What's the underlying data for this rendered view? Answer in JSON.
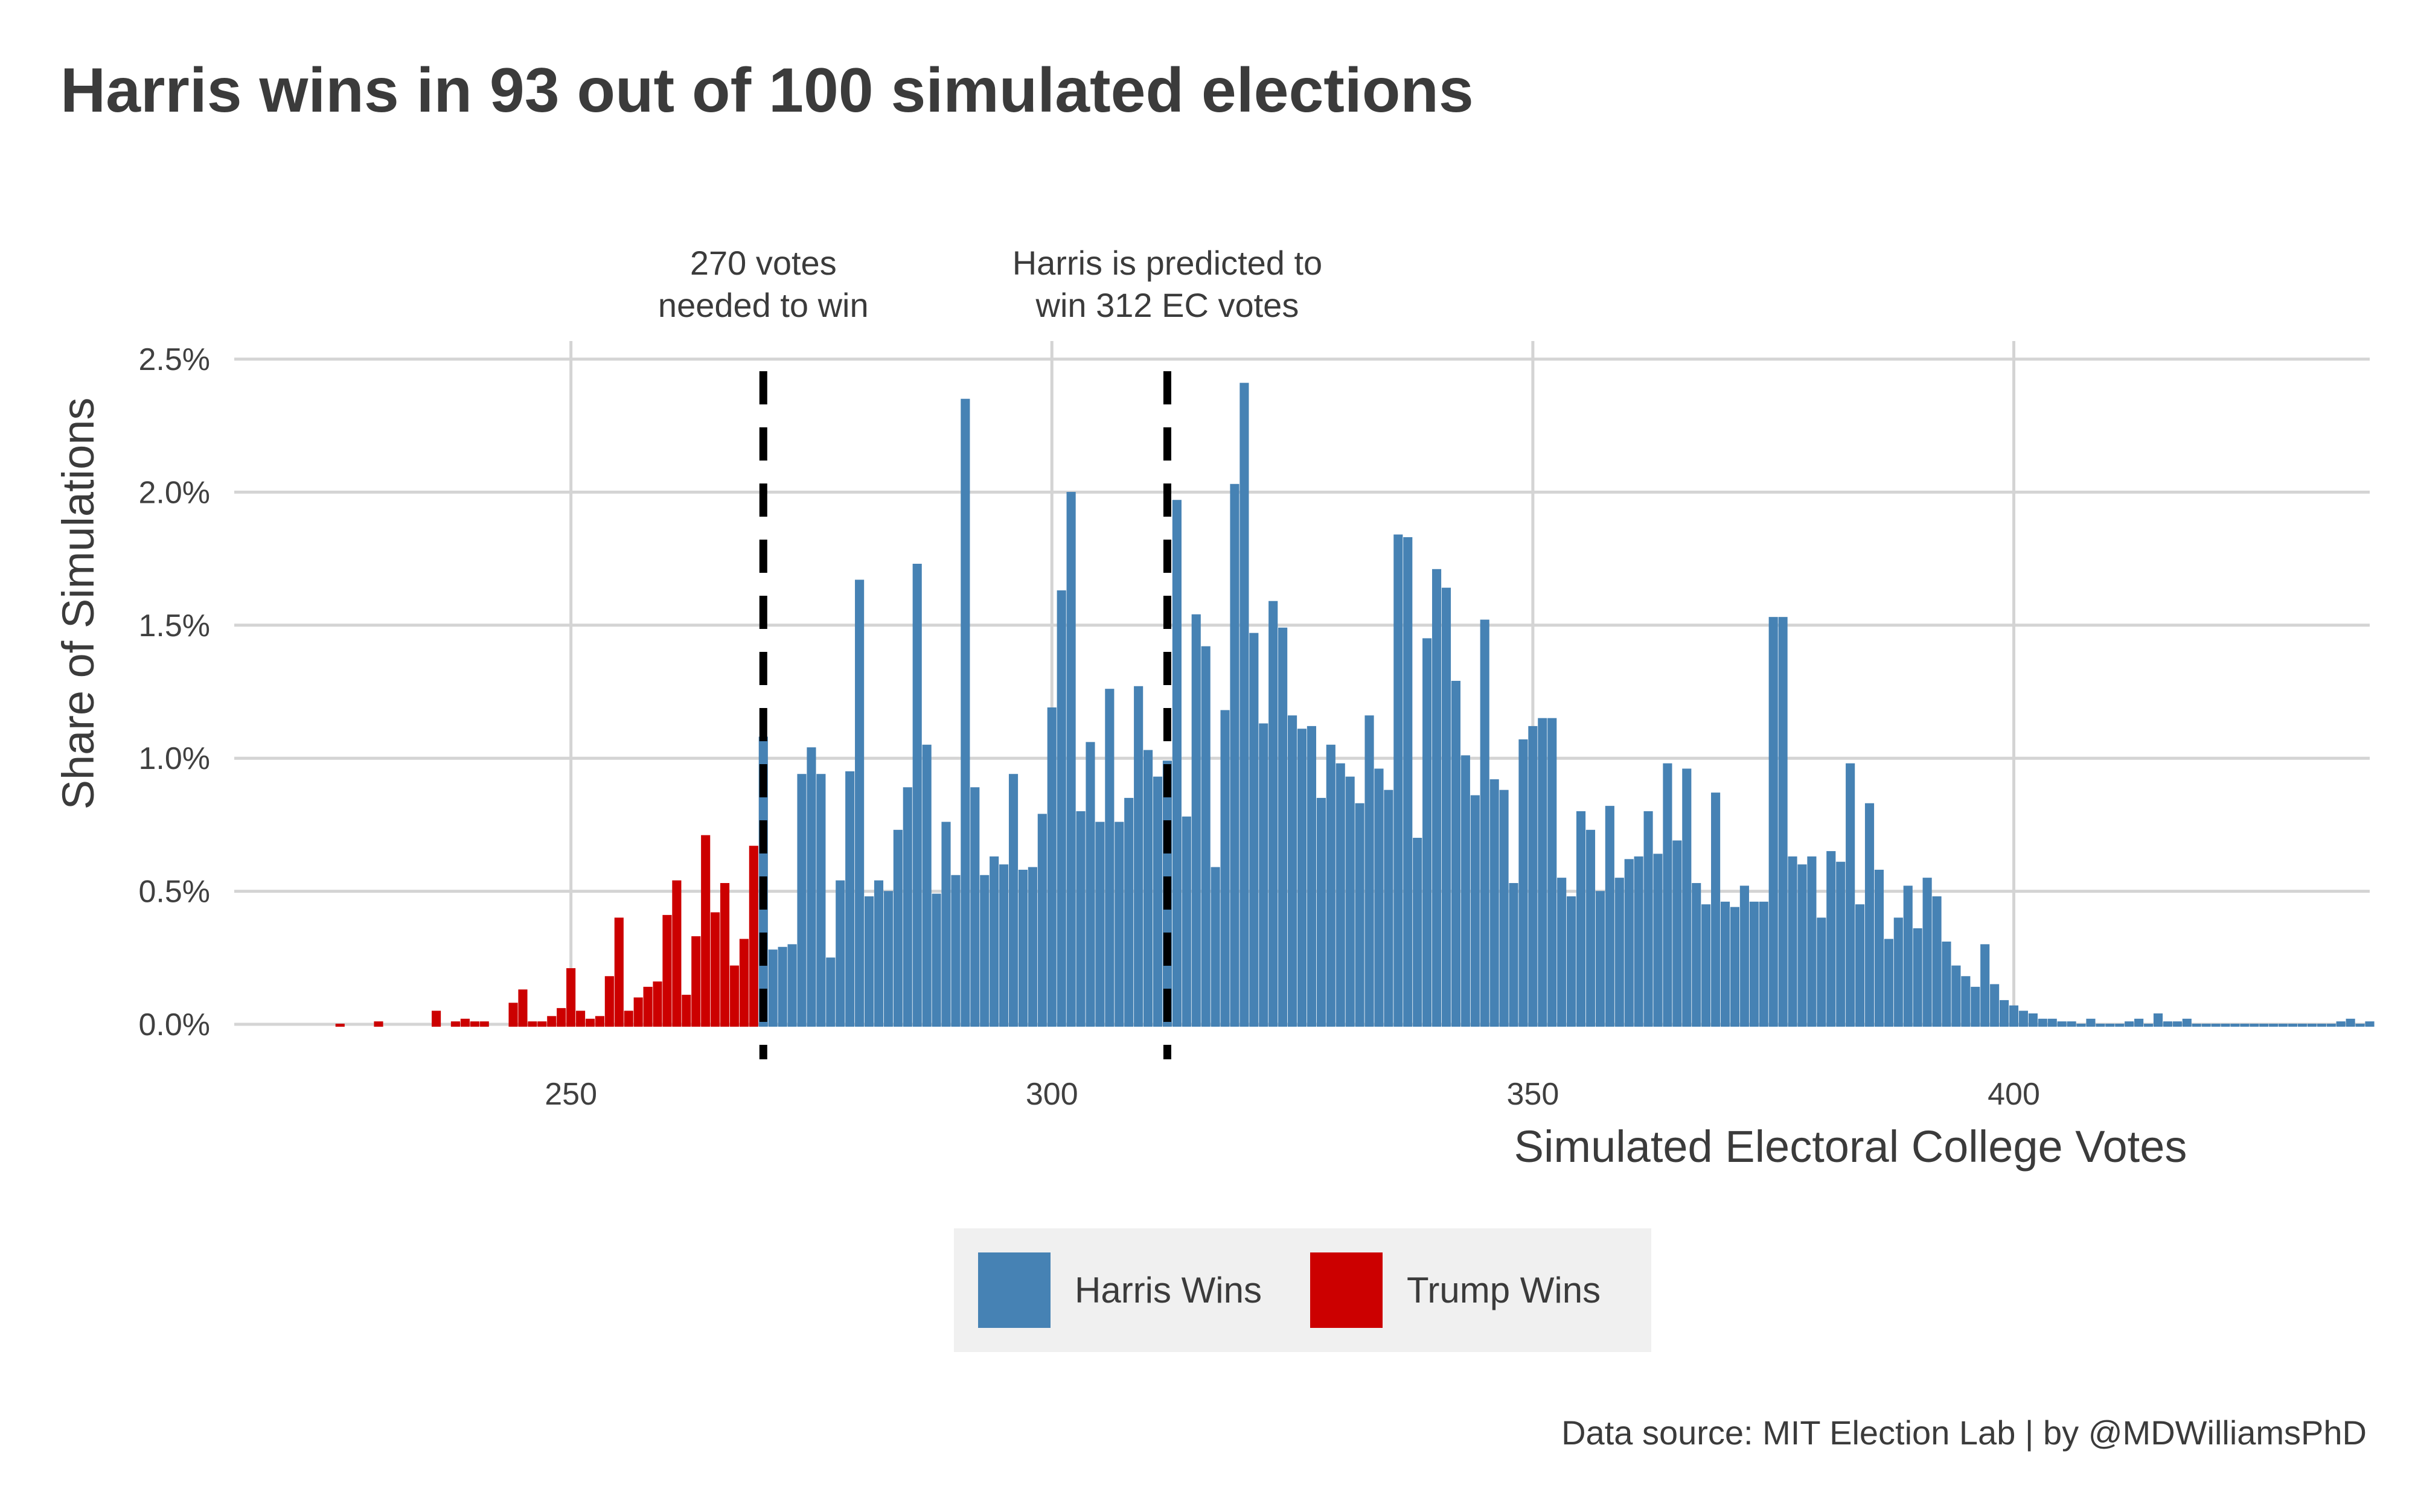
{
  "chart_data": {
    "type": "bar",
    "title": "Harris wins in 93 out of 100 simulated elections",
    "xlabel": "Simulated Electoral College Votes",
    "ylabel": "Share of Simulations",
    "caption": "Data source: MIT Election Lab | by @MDWilliamsPhD",
    "xlim": [
      215,
      437
    ],
    "ylim": [
      0,
      0.025
    ],
    "x_ticks": [
      250,
      300,
      350,
      400
    ],
    "y_ticks": [
      0,
      0.005,
      0.01,
      0.015,
      0.02,
      0.025
    ],
    "y_tick_labels": [
      "0.0%",
      "0.5%",
      "1.0%",
      "1.5%",
      "2.0%",
      "2.5%"
    ],
    "grid": true,
    "colors": {
      "harris": "#4682B4",
      "trump": "#CC0000",
      "reference_line": "#000000"
    },
    "legend": {
      "position": "bottom",
      "entries": [
        {
          "label": "Harris Wins",
          "color": "#4682B4"
        },
        {
          "label": "Trump Wins",
          "color": "#CC0000"
        }
      ]
    },
    "reference_lines": [
      {
        "x": 270,
        "label_lines": [
          "270 votes",
          "needed to win"
        ]
      },
      {
        "x": 312,
        "label_lines": [
          "Harris is predicted to",
          "win 312 EC votes"
        ]
      }
    ],
    "series": [
      {
        "name": "Trump Wins",
        "color": "#CC0000",
        "points": [
          [
            226,
            0.0001
          ],
          [
            230,
            0.0002
          ],
          [
            236,
            0.0006
          ],
          [
            238,
            0.0002
          ],
          [
            239,
            0.0003
          ],
          [
            240,
            0.0002
          ],
          [
            241,
            0.0002
          ],
          [
            244,
            0.0009
          ],
          [
            245,
            0.0014
          ],
          [
            246,
            0.0002
          ],
          [
            247,
            0.0002
          ],
          [
            248,
            0.0004
          ],
          [
            249,
            0.0007
          ],
          [
            250,
            0.0022
          ],
          [
            251,
            0.0006
          ],
          [
            252,
            0.0003
          ],
          [
            253,
            0.0004
          ],
          [
            254,
            0.0019
          ],
          [
            255,
            0.0041
          ],
          [
            256,
            0.0006
          ],
          [
            257,
            0.0011
          ],
          [
            258,
            0.0015
          ],
          [
            259,
            0.0017
          ],
          [
            260,
            0.0042
          ],
          [
            261,
            0.0055
          ],
          [
            262,
            0.0012
          ],
          [
            263,
            0.0034
          ],
          [
            264,
            0.0072
          ],
          [
            265,
            0.0043
          ],
          [
            266,
            0.0054
          ],
          [
            267,
            0.0023
          ],
          [
            268,
            0.0033
          ],
          [
            269,
            0.0068
          ]
        ]
      },
      {
        "name": "Harris Wins",
        "color": "#4682B4",
        "points": [
          [
            270,
            0.0109
          ],
          [
            271,
            0.0029
          ],
          [
            272,
            0.003
          ],
          [
            273,
            0.0031
          ],
          [
            274,
            0.0095
          ],
          [
            275,
            0.0105
          ],
          [
            276,
            0.0095
          ],
          [
            277,
            0.0026
          ],
          [
            278,
            0.0055
          ],
          [
            279,
            0.0096
          ],
          [
            280,
            0.0168
          ],
          [
            281,
            0.0049
          ],
          [
            282,
            0.0055
          ],
          [
            283,
            0.0051
          ],
          [
            284,
            0.0074
          ],
          [
            285,
            0.009
          ],
          [
            286,
            0.0174
          ],
          [
            287,
            0.0106
          ],
          [
            288,
            0.005
          ],
          [
            289,
            0.0077
          ],
          [
            290,
            0.0057
          ],
          [
            291,
            0.0236
          ],
          [
            292,
            0.009
          ],
          [
            293,
            0.0057
          ],
          [
            294,
            0.0064
          ],
          [
            295,
            0.0061
          ],
          [
            296,
            0.0095
          ],
          [
            297,
            0.0059
          ],
          [
            298,
            0.006
          ],
          [
            299,
            0.008
          ],
          [
            300,
            0.012
          ],
          [
            301,
            0.0164
          ],
          [
            302,
            0.0201
          ],
          [
            303,
            0.0081
          ],
          [
            304,
            0.0107
          ],
          [
            305,
            0.0077
          ],
          [
            306,
            0.0127
          ],
          [
            307,
            0.0077
          ],
          [
            308,
            0.0086
          ],
          [
            309,
            0.0128
          ],
          [
            310,
            0.0104
          ],
          [
            311,
            0.0094
          ],
          [
            312,
            0.01
          ],
          [
            313,
            0.0198
          ],
          [
            314,
            0.0079
          ],
          [
            315,
            0.0155
          ],
          [
            316,
            0.0143
          ],
          [
            317,
            0.006
          ],
          [
            318,
            0.0119
          ],
          [
            319,
            0.0204
          ],
          [
            320,
            0.0242
          ],
          [
            321,
            0.0148
          ],
          [
            322,
            0.0114
          ],
          [
            323,
            0.016
          ],
          [
            324,
            0.015
          ],
          [
            325,
            0.0117
          ],
          [
            326,
            0.0112
          ],
          [
            327,
            0.0113
          ],
          [
            328,
            0.0086
          ],
          [
            329,
            0.0106
          ],
          [
            330,
            0.0099
          ],
          [
            331,
            0.0094
          ],
          [
            332,
            0.0084
          ],
          [
            333,
            0.0117
          ],
          [
            334,
            0.0097
          ],
          [
            335,
            0.0089
          ],
          [
            336,
            0.0185
          ],
          [
            337,
            0.0184
          ],
          [
            338,
            0.0071
          ],
          [
            339,
            0.0146
          ],
          [
            340,
            0.0172
          ],
          [
            341,
            0.0165
          ],
          [
            342,
            0.013
          ],
          [
            343,
            0.0102
          ],
          [
            344,
            0.0087
          ],
          [
            345,
            0.0153
          ],
          [
            346,
            0.0093
          ],
          [
            347,
            0.0089
          ],
          [
            348,
            0.0054
          ],
          [
            349,
            0.0108
          ],
          [
            350,
            0.0113
          ],
          [
            351,
            0.0116
          ],
          [
            352,
            0.0116
          ],
          [
            353,
            0.0056
          ],
          [
            354,
            0.0049
          ],
          [
            355,
            0.0081
          ],
          [
            356,
            0.0074
          ],
          [
            357,
            0.0051
          ],
          [
            358,
            0.0083
          ],
          [
            359,
            0.0056
          ],
          [
            360,
            0.0063
          ],
          [
            361,
            0.0064
          ],
          [
            362,
            0.0081
          ],
          [
            363,
            0.0065
          ],
          [
            364,
            0.0099
          ],
          [
            365,
            0.007
          ],
          [
            366,
            0.0097
          ],
          [
            367,
            0.0054
          ],
          [
            368,
            0.0046
          ],
          [
            369,
            0.0088
          ],
          [
            370,
            0.0047
          ],
          [
            371,
            0.0045
          ],
          [
            372,
            0.0053
          ],
          [
            373,
            0.0047
          ],
          [
            374,
            0.0047
          ],
          [
            375,
            0.0154
          ],
          [
            376,
            0.0154
          ],
          [
            377,
            0.0064
          ],
          [
            378,
            0.0061
          ],
          [
            379,
            0.0064
          ],
          [
            380,
            0.0041
          ],
          [
            381,
            0.0066
          ],
          [
            382,
            0.0062
          ],
          [
            383,
            0.0099
          ],
          [
            384,
            0.0046
          ],
          [
            385,
            0.0084
          ],
          [
            386,
            0.0059
          ],
          [
            387,
            0.0033
          ],
          [
            388,
            0.0041
          ],
          [
            389,
            0.0053
          ],
          [
            390,
            0.0037
          ],
          [
            391,
            0.0056
          ],
          [
            392,
            0.0049
          ],
          [
            393,
            0.0032
          ],
          [
            394,
            0.0023
          ],
          [
            395,
            0.0019
          ],
          [
            396,
            0.0015
          ],
          [
            397,
            0.0031
          ],
          [
            398,
            0.0016
          ],
          [
            399,
            0.001
          ],
          [
            400,
            0.0008
          ],
          [
            401,
            0.0006
          ],
          [
            402,
            0.0005
          ],
          [
            403,
            0.0003
          ],
          [
            404,
            0.0003
          ],
          [
            405,
            0.0002
          ],
          [
            406,
            0.0002
          ],
          [
            407,
            0.0001
          ],
          [
            408,
            0.0003
          ],
          [
            409,
            0.0001
          ],
          [
            410,
            0.0001
          ],
          [
            411,
            0.0001
          ],
          [
            412,
            0.0002
          ],
          [
            413,
            0.0003
          ],
          [
            414,
            0.0001
          ],
          [
            415,
            0.0005
          ],
          [
            416,
            0.0002
          ],
          [
            417,
            0.0002
          ],
          [
            418,
            0.0003
          ],
          [
            419,
            0.0001
          ],
          [
            420,
            0.0001
          ],
          [
            421,
            0.0001
          ],
          [
            422,
            0.0001
          ],
          [
            423,
            0.0001
          ],
          [
            424,
            0.0001
          ],
          [
            425,
            0.0001
          ],
          [
            426,
            0.0001
          ],
          [
            427,
            0.0001
          ],
          [
            428,
            0.0001
          ],
          [
            429,
            0.0001
          ],
          [
            430,
            0.0001
          ],
          [
            431,
            0.0001
          ],
          [
            432,
            0.0001
          ],
          [
            433,
            0.0001
          ],
          [
            434,
            0.0002
          ],
          [
            435,
            0.0003
          ],
          [
            436,
            0.0001
          ],
          [
            437,
            0.0002
          ]
        ]
      }
    ]
  }
}
